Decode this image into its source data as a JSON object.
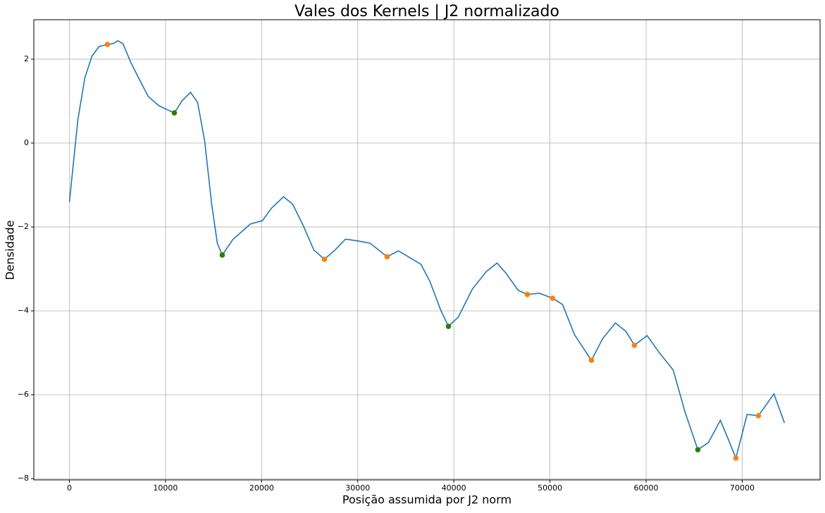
{
  "chart_data": {
    "type": "line",
    "title": "Vales dos Kernels | J2 normalizado",
    "xlabel": "Posição assumida por J2 norm",
    "ylabel": "Densidade",
    "xlim": [
      -3700,
      78100
    ],
    "ylim": [
      -8.03,
      2.94
    ],
    "xticks": [
      0,
      10000,
      20000,
      30000,
      40000,
      50000,
      60000,
      70000
    ],
    "yticks": [
      {
        "value": -8,
        "label": "−8"
      },
      {
        "value": -6,
        "label": "−6"
      },
      {
        "value": -4,
        "label": "−4"
      },
      {
        "value": -2,
        "label": "−2"
      },
      0,
      2
    ],
    "grid": true,
    "series": [
      {
        "type": "line",
        "color": "#1f77b4",
        "x": [
          0,
          880,
          1612,
          2345,
          3078,
          3958,
          4545,
          5057,
          5570,
          6377,
          7183,
          8209,
          9309,
          10408,
          10921,
          11727,
          12607,
          13340,
          14073,
          14806,
          15393,
          15906,
          17005,
          18838,
          20084,
          21037,
          22283,
          23236,
          24335,
          25435,
          26534,
          27634,
          28733,
          30199,
          31299,
          33058,
          34231,
          35330,
          36576,
          37529,
          38628,
          39435,
          40461,
          41927,
          43393,
          44492,
          45445,
          46691,
          47644,
          48890,
          50282,
          51309,
          52555,
          54314,
          55486,
          56806,
          57905,
          58785,
          60104,
          61350,
          62816,
          64062,
          65381,
          66481,
          67727,
          68460,
          69340,
          70512,
          71685,
          72711,
          73297,
          74397
        ],
        "values": [
          -1.41,
          0.55,
          1.56,
          2.07,
          2.3,
          2.35,
          2.37,
          2.44,
          2.37,
          1.93,
          1.56,
          1.11,
          0.89,
          0.77,
          0.72,
          1.01,
          1.21,
          0.97,
          0.05,
          -1.46,
          -2.39,
          -2.67,
          -2.3,
          -1.93,
          -1.85,
          -1.55,
          -1.28,
          -1.46,
          -1.97,
          -2.55,
          -2.77,
          -2.55,
          -2.29,
          -2.34,
          -2.39,
          -2.71,
          -2.57,
          -2.72,
          -2.89,
          -3.31,
          -3.98,
          -4.37,
          -4.15,
          -3.48,
          -3.06,
          -2.86,
          -3.11,
          -3.51,
          -3.61,
          -3.58,
          -3.7,
          -3.85,
          -4.57,
          -5.18,
          -4.66,
          -4.29,
          -4.49,
          -4.82,
          -4.59,
          -4.99,
          -5.41,
          -6.42,
          -7.31,
          -7.14,
          -6.61,
          -7.01,
          -7.51,
          -6.47,
          -6.5,
          -6.17,
          -5.98,
          -6.67
        ]
      },
      {
        "type": "scatter",
        "color": "#ff7f0e",
        "x": [
          3958,
          26534,
          33058,
          47644,
          50282,
          54314,
          58785,
          69340,
          71685
        ],
        "values": [
          2.35,
          -2.77,
          -2.71,
          -3.61,
          -3.7,
          -5.18,
          -4.82,
          -7.51,
          -6.5
        ]
      },
      {
        "type": "scatter",
        "color": "#2e7d00",
        "x": [
          10921,
          15906,
          39435,
          65381
        ],
        "values": [
          0.72,
          -2.67,
          -4.37,
          -7.31
        ]
      }
    ]
  }
}
